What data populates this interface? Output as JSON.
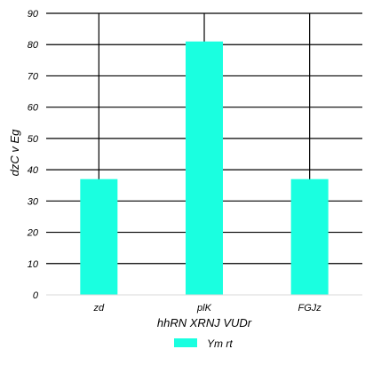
{
  "chart_data": {
    "type": "bar",
    "title": "",
    "xlabel": "hhRN XRNJ VUDr",
    "ylabel": "dzC v Eg",
    "categories": [
      "zd",
      "plK",
      "FGJz"
    ],
    "series": [
      {
        "name": "Ym rt",
        "values": [
          37,
          81,
          37
        ],
        "color": "#1affe0"
      }
    ],
    "ylim": [
      0,
      90
    ],
    "yticks": [
      0,
      10,
      20,
      30,
      40,
      50,
      60,
      70,
      80,
      90
    ],
    "grid": true,
    "legend_position": "bottom-center"
  }
}
